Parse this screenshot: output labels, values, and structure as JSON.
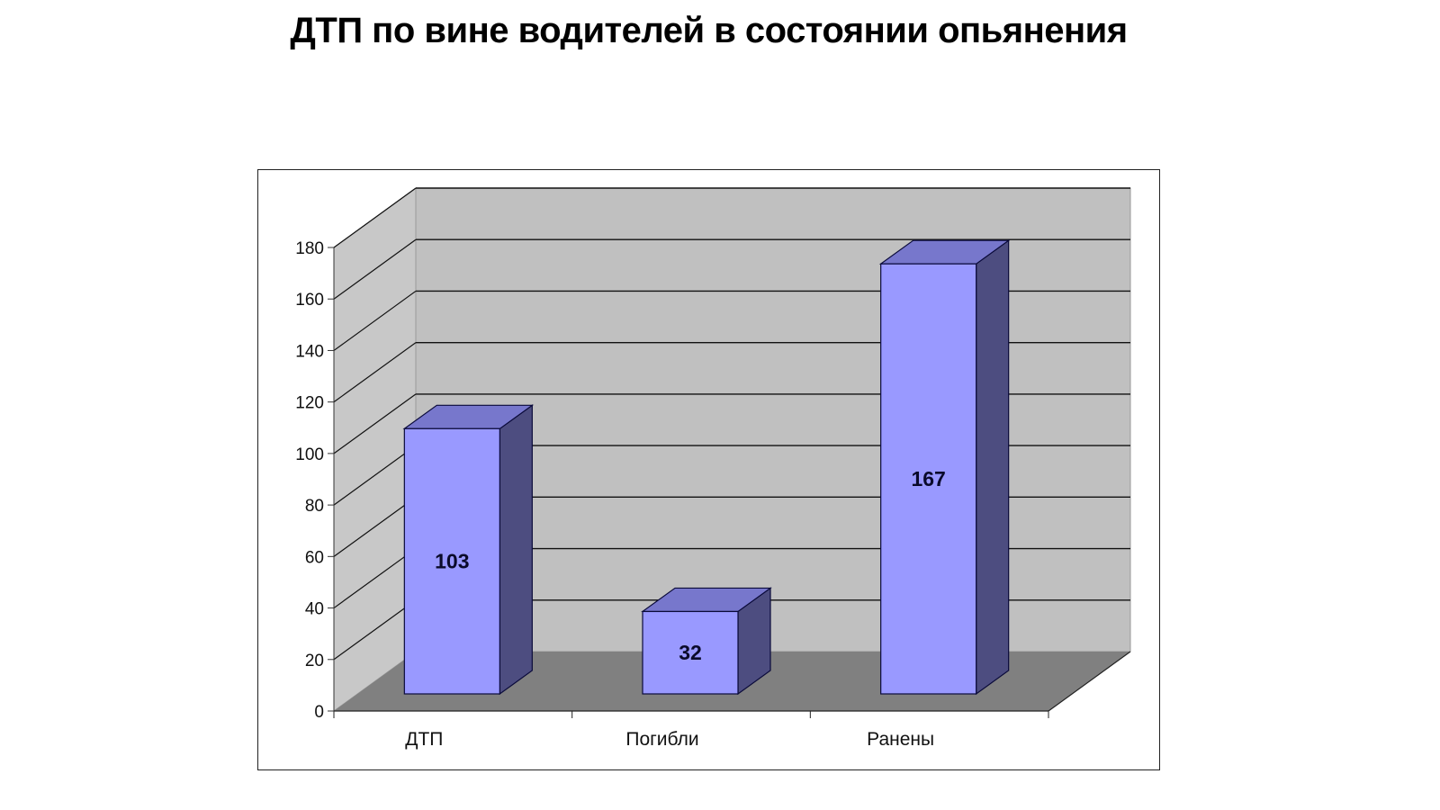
{
  "title": "ДТП по вине водителей в состоянии опьянения",
  "chart_data": {
    "type": "bar",
    "style": "3d-column",
    "title": "ДТП по вине водителей в состоянии опьянения",
    "xlabel": "",
    "ylabel": "",
    "categories": [
      "ДТП",
      "Погибли",
      "Ранены"
    ],
    "values": [
      103,
      32,
      167
    ],
    "data_labels": [
      "103",
      "32",
      "167"
    ],
    "ylim": [
      0,
      180
    ],
    "yticks": [
      0,
      20,
      40,
      60,
      80,
      100,
      120,
      140,
      160,
      180
    ],
    "grid": true,
    "legend": null,
    "colors": {
      "bar_front": "#9999ff",
      "bar_top": "#7777cc",
      "bar_side": "#4d4d80",
      "bar_outline": "#0a0a3a",
      "back_wall": "#c0c0c0",
      "side_wall": "#c8c8c8",
      "floor": "#808080",
      "gridline": "#111111"
    }
  }
}
